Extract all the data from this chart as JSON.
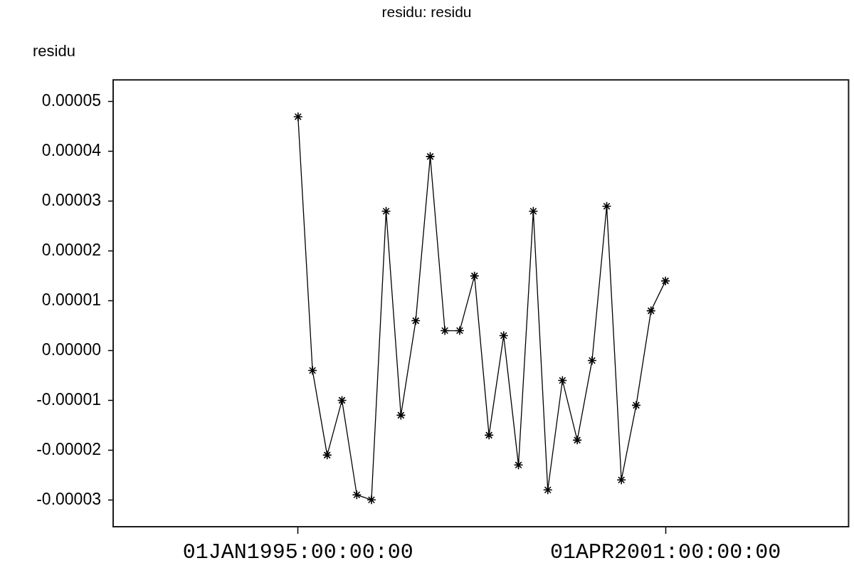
{
  "chart_data": {
    "type": "line",
    "title": "residu: residu",
    "ylabel": "residu",
    "x": [
      "1995-01",
      "1995-04",
      "1995-07",
      "1995-10",
      "1996-01",
      "1996-04",
      "1996-07",
      "1996-10",
      "1997-01",
      "1997-04",
      "1997-07",
      "1997-10",
      "1998-01",
      "1998-04",
      "1998-07",
      "1998-10",
      "1999-01",
      "1999-04",
      "1999-07",
      "1999-10",
      "2000-01",
      "2000-04",
      "2000-07",
      "2000-10",
      "2001-01",
      "2001-04"
    ],
    "series": [
      {
        "color": "#000000",
        "values": [
          4.7e-05,
          -4e-06,
          -2.1e-05,
          -1e-05,
          -2.9e-05,
          -3e-05,
          2.8e-05,
          -1.3e-05,
          6e-06,
          3.9e-05,
          4e-06,
          4e-06,
          1.5e-05,
          -1.7e-05,
          3e-06,
          -2.3e-05,
          2.8e-05,
          -2.8e-05,
          -6e-06,
          -1.8e-05,
          -2e-06,
          2.9e-05,
          -2.6e-05,
          -1.1e-05,
          8e-06,
          1.4e-05
        ]
      }
    ],
    "xlim": [
      "1991-11-10",
      "2004-05-12"
    ],
    "xticks": [
      {
        "value": "1995-01-01",
        "label": "01JAN1995:00:00:00"
      },
      {
        "value": "2001-04-01",
        "label": "01APR2001:00:00:00"
      }
    ],
    "ylim": [
      -3.54e-05,
      5.44e-05
    ],
    "yticks": [
      {
        "value": -3e-05,
        "label": "-0.00003"
      },
      {
        "value": -2e-05,
        "label": "-0.00002"
      },
      {
        "value": -1e-05,
        "label": "-0.00001"
      },
      {
        "value": 0,
        "label": "0.00000"
      },
      {
        "value": 1e-05,
        "label": "0.00001"
      },
      {
        "value": 2e-05,
        "label": "0.00002"
      },
      {
        "value": 3e-05,
        "label": "0.00003"
      },
      {
        "value": 4e-05,
        "label": "0.00004"
      },
      {
        "value": 5e-05,
        "label": "0.00005"
      }
    ],
    "marker": "cross",
    "line_style": "solid",
    "grid": false,
    "legend": false
  }
}
